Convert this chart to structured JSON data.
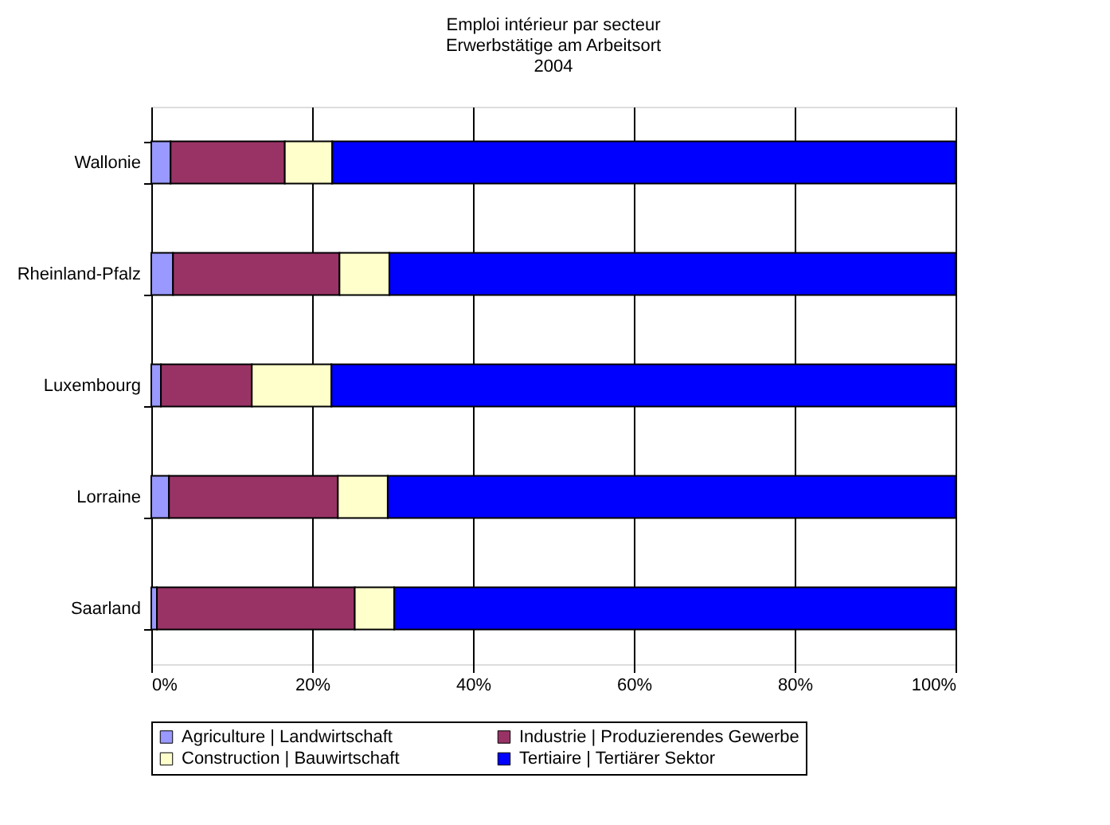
{
  "chart_data": {
    "type": "bar",
    "orientation": "horizontal",
    "stacked": true,
    "title": [
      "Emploi intérieur par secteur",
      "Erwerbstätige am Arbeitsort",
      "2004"
    ],
    "categories": [
      "Wallonie",
      "Rheinland-Pfalz",
      "Luxembourg",
      "Lorraine",
      "Saarland"
    ],
    "series": [
      {
        "name": "Agriculture | Landwirtschaft",
        "color": "#9999ff",
        "values": [
          2.4,
          2.7,
          1.2,
          2.2,
          0.7
        ]
      },
      {
        "name": "Industrie | Produzierendes Gewerbe",
        "color": "#993366",
        "values": [
          14.2,
          20.7,
          11.3,
          21.0,
          24.6
        ]
      },
      {
        "name": "Construction | Bauwirtschaft",
        "color": "#ffffcc",
        "values": [
          5.9,
          6.2,
          9.9,
          6.2,
          4.9
        ]
      },
      {
        "name": "Tertiaire | Tertiärer Sektor",
        "color": "#0000ff",
        "values": [
          77.5,
          70.4,
          77.6,
          70.6,
          69.8
        ]
      }
    ],
    "xlim": [
      0,
      100
    ],
    "xticks": [
      {
        "value": 0,
        "label": "0%"
      },
      {
        "value": 20,
        "label": "20%"
      },
      {
        "value": 40,
        "label": "40%"
      },
      {
        "value": 60,
        "label": "60%"
      },
      {
        "value": 80,
        "label": "80%"
      },
      {
        "value": 100,
        "label": "100%"
      }
    ],
    "grid": "x",
    "legend": "bottom"
  }
}
